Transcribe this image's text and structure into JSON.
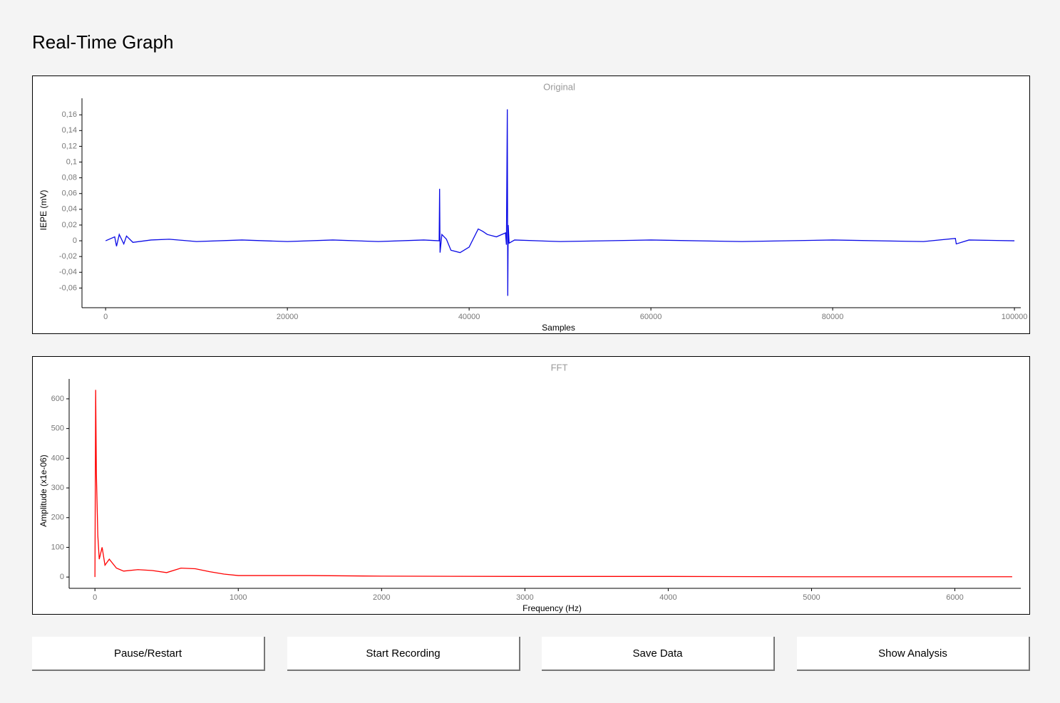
{
  "header": {
    "title": "Real-Time Graph"
  },
  "chart_data": [
    {
      "type": "line",
      "title": "Original",
      "x_label": "Samples",
      "y_label": "IEPE (mV)",
      "x": [
        0,
        1000,
        1200,
        1500,
        2000,
        2300,
        3000,
        5000,
        7000,
        10000,
        15000,
        20000,
        25000,
        30000,
        35000,
        36700,
        36750,
        36800,
        37000,
        37500,
        38000,
        39000,
        40000,
        41000,
        41500,
        42000,
        43000,
        44000,
        44100,
        44200,
        44250,
        44300,
        44400,
        45000,
        50000,
        60000,
        70000,
        80000,
        90000,
        93500,
        93600,
        95000,
        100000
      ],
      "series": [
        {
          "color": "#0a0ae6",
          "values": [
            0,
            0.005,
            -0.007,
            0.008,
            -0.004,
            0.006,
            -0.002,
            0.001,
            0.002,
            -0.001,
            0.001,
            -0.001,
            0.001,
            -0.001,
            0.001,
            0,
            0.066,
            -0.015,
            0.008,
            0.002,
            -0.012,
            -0.015,
            -0.008,
            0.015,
            0.012,
            0.008,
            0.005,
            0.01,
            -0.005,
            0.167,
            -0.07,
            0.02,
            -0.003,
            0.001,
            -0.001,
            0.001,
            -0.001,
            0.001,
            -0.001,
            0.003,
            -0.004,
            0.001,
            0
          ]
        }
      ],
      "xlim": [
        -2600,
        100700
      ],
      "ylim": [
        -0.085,
        0.181
      ],
      "xticks": [
        0,
        20000,
        40000,
        60000,
        80000,
        100000
      ],
      "yticks": [
        {
          "value": -0.06,
          "label": "-0,06"
        },
        {
          "value": -0.04,
          "label": "-0,04"
        },
        {
          "value": -0.02,
          "label": "-0,02"
        },
        0,
        {
          "value": 0.02,
          "label": "0,02"
        },
        {
          "value": 0.04,
          "label": "0,04"
        },
        {
          "value": 0.06,
          "label": "0,06"
        },
        {
          "value": 0.08,
          "label": "0,08"
        },
        {
          "value": 0.1,
          "label": "0,1"
        },
        {
          "value": 0.12,
          "label": "0,12"
        },
        {
          "value": 0.14,
          "label": "0,14"
        },
        {
          "value": 0.16,
          "label": "0,16"
        }
      ]
    },
    {
      "type": "line",
      "title": "FFT",
      "x_label": "Frequency (Hz)",
      "y_label": "Amplitude (x1e-06)",
      "x": [
        0,
        5,
        10,
        20,
        30,
        50,
        70,
        100,
        150,
        200,
        300,
        400,
        500,
        600,
        700,
        800,
        900,
        1000,
        1500,
        2000,
        3000,
        4000,
        5000,
        6000,
        6400
      ],
      "series": [
        {
          "color": "#ff0000",
          "values": [
            0,
            630,
            350,
            140,
            60,
            100,
            40,
            60,
            30,
            20,
            25,
            22,
            15,
            30,
            28,
            18,
            10,
            5,
            5,
            3,
            2,
            2,
            1,
            1,
            1
          ]
        }
      ],
      "xlim": [
        -180,
        6460
      ],
      "ylim": [
        -38,
        667
      ],
      "xticks": [
        0,
        1000,
        2000,
        3000,
        4000,
        5000,
        6000
      ],
      "yticks": [
        0,
        100,
        200,
        300,
        400,
        500,
        600
      ]
    }
  ],
  "buttons": [
    "Pause/Restart",
    "Start Recording",
    "Save Data",
    "Show Analysis"
  ]
}
